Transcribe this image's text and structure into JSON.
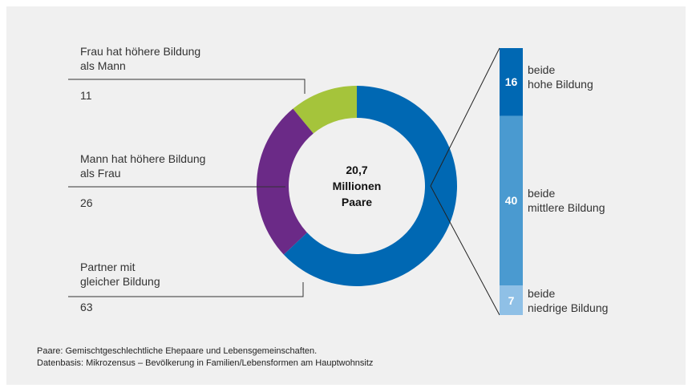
{
  "chart_data": [
    {
      "type": "donut",
      "center_label": "20,7\nMillionen\nPaare",
      "categories": [
        "Frau hat höhere Bildung\nals Mann",
        "Mann hat höhere Bildung\nals Frau",
        "Partner mit\ngleicher Bildung"
      ],
      "values": [
        11,
        26,
        63
      ],
      "colors": [
        "#a5c43b",
        "#6b2a87",
        "#0068b3"
      ]
    },
    {
      "type": "stacked_bar",
      "categories": [
        "beide\nhohe Bildung",
        "beide\nmittlere Bildung",
        "beide\nniedrige Bildung"
      ],
      "values": [
        16,
        40,
        7
      ],
      "colors": [
        "#0068b3",
        "#4a9ad0",
        "#8fc0e6"
      ]
    }
  ],
  "notes": [
    "Paare: Gemischtgeschlechtliche Ehepaare und Lebensgemeinschaften.",
    "Datenbasis: Mikrozensus – Bevölkerung in Familien/Lebensformen am Hauptwohnsitz"
  ]
}
